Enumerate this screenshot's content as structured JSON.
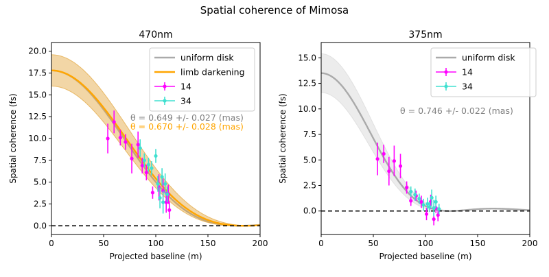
{
  "figure": {
    "suptitle": "Spatial coherence of Mimosa"
  },
  "chart_data": [
    {
      "type": "line",
      "title": "470nm",
      "xlabel": "Projected baseline (m)",
      "ylabel": "Spatial coherence (fs)",
      "xlim": [
        0,
        200
      ],
      "ylim": [
        -1.0,
        21.0
      ],
      "xticks": [
        "0",
        "50",
        "100",
        "150",
        "200"
      ],
      "yticks": [
        "0.0",
        "2.5",
        "5.0",
        "7.5",
        "10.0",
        "12.5",
        "15.0",
        "17.5",
        "20.0"
      ],
      "legend_position": "upper-right",
      "models": [
        {
          "name": "uniform disk",
          "color": "#aaaaaa",
          "amplitude": 17.8,
          "first_zero": 180,
          "band": false
        },
        {
          "name": "limb darkening",
          "color": "#ffa500",
          "amplitude": 17.8,
          "first_zero": 185,
          "band": true,
          "band_half_width_at_zero": 1.8
        }
      ],
      "annotations": [
        {
          "text": "θ = 0.649 +/- 0.027 (mas)",
          "color": "#808080"
        },
        {
          "text": "θ = 0.670 +/- 0.028 (mas)",
          "color": "#ffa500"
        }
      ],
      "series": [
        {
          "name": "14",
          "color": "#ff00ff",
          "points": [
            {
              "x": 54,
              "y": 10.0,
              "err": 1.7
            },
            {
              "x": 60,
              "y": 11.9,
              "err": 1.3
            },
            {
              "x": 66,
              "y": 10.1,
              "err": 0.9
            },
            {
              "x": 71,
              "y": 9.6,
              "err": 0.9
            },
            {
              "x": 77,
              "y": 7.7,
              "err": 1.7
            },
            {
              "x": 83,
              "y": 9.3,
              "err": 1.5
            },
            {
              "x": 87,
              "y": 6.9,
              "err": 0.9
            },
            {
              "x": 91,
              "y": 6.1,
              "err": 0.9
            },
            {
              "x": 97,
              "y": 3.8,
              "err": 0.7
            },
            {
              "x": 103,
              "y": 4.4,
              "err": 1.5
            },
            {
              "x": 107,
              "y": 4.0,
              "err": 1.4
            },
            {
              "x": 110,
              "y": 2.7,
              "err": 1.2
            },
            {
              "x": 112,
              "y": 3.6,
              "err": 1.1
            },
            {
              "x": 113,
              "y": 1.8,
              "err": 1.0
            }
          ]
        },
        {
          "name": "34",
          "color": "#40e0d0",
          "points": [
            {
              "x": 85,
              "y": 8.9,
              "err": 1.0
            },
            {
              "x": 89,
              "y": 7.5,
              "err": 0.8
            },
            {
              "x": 93,
              "y": 7.0,
              "err": 0.8
            },
            {
              "x": 96,
              "y": 6.6,
              "err": 0.8
            },
            {
              "x": 100,
              "y": 8.0,
              "err": 0.8
            },
            {
              "x": 102,
              "y": 4.8,
              "err": 0.9
            },
            {
              "x": 104,
              "y": 3.2,
              "err": 1.2
            },
            {
              "x": 106,
              "y": 5.6,
              "err": 1.0
            },
            {
              "x": 107,
              "y": 2.7,
              "err": 1.3
            },
            {
              "x": 109,
              "y": 4.8,
              "err": 1.2
            },
            {
              "x": 111,
              "y": 3.6,
              "err": 0.9
            }
          ]
        }
      ]
    },
    {
      "type": "line",
      "title": "375nm",
      "xlabel": "Projected baseline (m)",
      "ylabel": "Spatial coherence (fs)",
      "xlim": [
        0,
        200
      ],
      "ylim": [
        -2.3,
        16.5
      ],
      "xticks": [
        "0",
        "50",
        "100",
        "150",
        "200"
      ],
      "yticks": [
        "0.0",
        "2.5",
        "5.0",
        "7.5",
        "10.0",
        "12.5",
        "15.0"
      ],
      "legend_position": "upper-right",
      "models": [
        {
          "name": "uniform disk",
          "color": "#aaaaaa",
          "amplitude": 13.5,
          "first_zero": 123,
          "band": true,
          "band_half_width_at_zero": 1.9
        }
      ],
      "annotations": [
        {
          "text": "θ = 0.746 +/- 0.022 (mas)",
          "color": "#808080"
        }
      ],
      "series": [
        {
          "name": "14",
          "color": "#ff00ff",
          "points": [
            {
              "x": 54,
              "y": 5.1,
              "err": 1.6
            },
            {
              "x": 60,
              "y": 5.6,
              "err": 0.9
            },
            {
              "x": 65,
              "y": 3.9,
              "err": 1.4
            },
            {
              "x": 70,
              "y": 4.9,
              "err": 1.5
            },
            {
              "x": 76,
              "y": 4.4,
              "err": 1.2
            },
            {
              "x": 82,
              "y": 2.3,
              "err": 0.6
            },
            {
              "x": 86,
              "y": 1.0,
              "err": 0.5
            },
            {
              "x": 91,
              "y": 1.5,
              "err": 0.5
            },
            {
              "x": 96,
              "y": 0.9,
              "err": 0.6
            },
            {
              "x": 101,
              "y": -0.3,
              "err": 0.6
            },
            {
              "x": 105,
              "y": 0.9,
              "err": 0.7
            },
            {
              "x": 108,
              "y": -0.8,
              "err": 0.6
            },
            {
              "x": 110,
              "y": 0.3,
              "err": 0.5
            },
            {
              "x": 112,
              "y": -0.4,
              "err": 0.6
            }
          ]
        },
        {
          "name": "34",
          "color": "#40e0d0",
          "points": [
            {
              "x": 86,
              "y": 1.9,
              "err": 0.5
            },
            {
              "x": 90,
              "y": 1.6,
              "err": 0.6
            },
            {
              "x": 94,
              "y": 1.2,
              "err": 0.5
            },
            {
              "x": 98,
              "y": 0.6,
              "err": 0.6
            },
            {
              "x": 102,
              "y": 0.7,
              "err": 0.6
            },
            {
              "x": 104,
              "y": 0.4,
              "err": 0.5
            },
            {
              "x": 106,
              "y": 1.3,
              "err": 0.8
            },
            {
              "x": 108,
              "y": 0.3,
              "err": 0.8
            },
            {
              "x": 110,
              "y": 0.9,
              "err": 0.6
            },
            {
              "x": 113,
              "y": 0.2,
              "err": 0.5
            }
          ]
        }
      ]
    }
  ]
}
